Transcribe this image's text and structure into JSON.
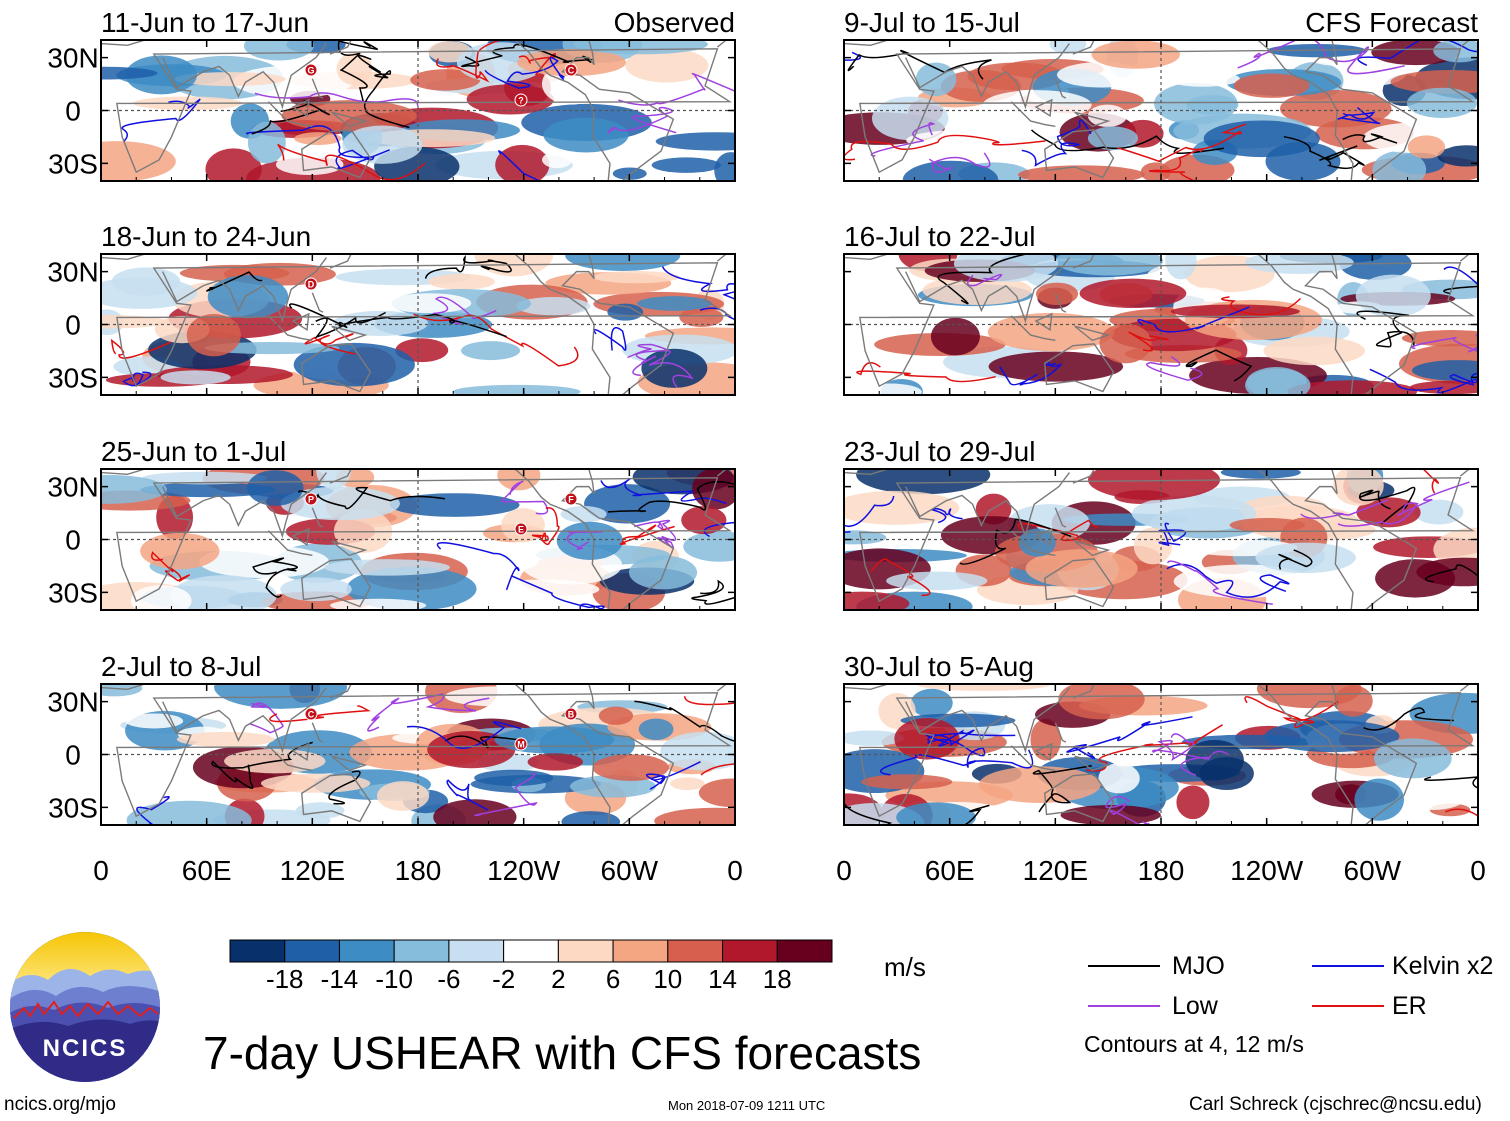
{
  "chart_data": [
    {
      "type": "heatmap",
      "position": "left",
      "title": "11-Jun to 17-Jun",
      "label": "Observed",
      "storm_markers": [
        "G",
        "?",
        "C"
      ]
    },
    {
      "type": "heatmap",
      "position": "left",
      "title": "18-Jun to 24-Jun",
      "storm_markers": [
        "D"
      ]
    },
    {
      "type": "heatmap",
      "position": "left",
      "title": "25-Jun to 1-Jul",
      "storm_markers": [
        "P",
        "E",
        "F"
      ]
    },
    {
      "type": "heatmap",
      "position": "left",
      "title": "2-Jul to 8-Jul",
      "storm_markers": [
        "C",
        "M",
        "B"
      ]
    },
    {
      "type": "heatmap",
      "position": "right",
      "title": "9-Jul to 15-Jul",
      "label": "CFS Forecast"
    },
    {
      "type": "heatmap",
      "position": "right",
      "title": "16-Jul to 22-Jul"
    },
    {
      "type": "heatmap",
      "position": "right",
      "title": "23-Jul to 29-Jul"
    },
    {
      "type": "heatmap",
      "position": "right",
      "title": "30-Jul to 5-Aug"
    }
  ],
  "axes": {
    "y_ticks": [
      "30N",
      "0",
      "30S"
    ],
    "y_values": [
      30,
      0,
      -30
    ],
    "x_ticks": [
      "0",
      "60E",
      "120E",
      "180",
      "120W",
      "60W",
      "0"
    ],
    "x_values": [
      0,
      60,
      120,
      180,
      240,
      300,
      360
    ],
    "lat_range": [
      -40,
      40
    ],
    "lon_range": [
      0,
      360
    ]
  },
  "colorbar": {
    "labels": [
      "-18",
      "-14",
      "-10",
      "-6",
      "-2",
      "2",
      "6",
      "10",
      "14",
      "18"
    ],
    "colors": [
      "#08306b",
      "#1f5fa8",
      "#3d8cc4",
      "#86bcdc",
      "#c7dff0",
      "#ffffff",
      "#fdd9c4",
      "#f4a582",
      "#d6604d",
      "#b2182b",
      "#67001f"
    ],
    "units": "m/s"
  },
  "legend": {
    "items": [
      {
        "label": "MJO",
        "color": "#000000"
      },
      {
        "label": "Kelvin x2",
        "color": "#1010e0"
      },
      {
        "label": "Low",
        "color": "#a040e0"
      },
      {
        "label": "ER",
        "color": "#e01010"
      }
    ],
    "note": "Contours at 4, 12 m/s"
  },
  "main_title": "7-day USHEAR with CFS forecasts",
  "footer": {
    "left": "ncics.org/mjo",
    "center": "Mon 2018-07-09 1211 UTC",
    "right": "Carl Schreck (cjschrec@ncsu.edu)"
  },
  "logo": {
    "text": "NCICS"
  }
}
